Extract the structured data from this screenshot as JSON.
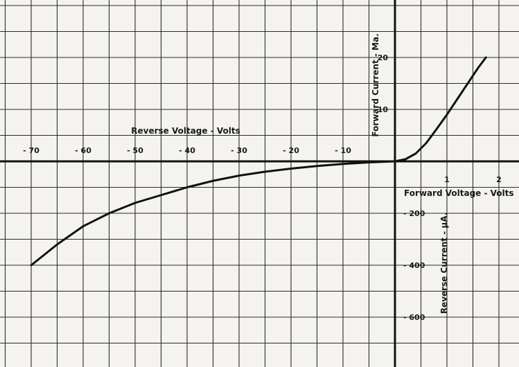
{
  "chart_data": {
    "type": "line",
    "grid": true,
    "axes": {
      "reverse_voltage": {
        "label": "Reverse Voltage - Volts",
        "ticks": [
          "- 70",
          "- 60",
          "- 50",
          "- 40",
          "- 30",
          "- 20",
          "- 10"
        ],
        "tick_values": [
          -70,
          -60,
          -50,
          -40,
          -30,
          -20,
          -10
        ],
        "range": [
          -75,
          0
        ]
      },
      "forward_voltage": {
        "label": "Forward Voltage - Volts",
        "ticks": [
          "1",
          "2"
        ],
        "tick_values": [
          1,
          2
        ],
        "range": [
          0,
          2.25
        ]
      },
      "forward_current": {
        "label": "Forward Current - Ma.",
        "ticks": [
          "20",
          "10"
        ],
        "tick_values": [
          20,
          10
        ],
        "range": [
          0,
          30
        ]
      },
      "reverse_current": {
        "label": "Reverse Current - µA.",
        "ticks": [
          "- 200",
          "- 400",
          "- 600"
        ],
        "tick_values": [
          -200,
          -400,
          -600
        ],
        "range": [
          -700,
          0
        ]
      }
    },
    "series": [
      {
        "segment": "reverse",
        "x": [
          -70,
          -65,
          -60,
          -55,
          -50,
          -45,
          -40,
          -35,
          -30,
          -25,
          -20,
          -15,
          -10,
          -5,
          0
        ],
        "y": [
          -400,
          -320,
          -250,
          -200,
          -160,
          -130,
          -100,
          -75,
          -55,
          -40,
          -28,
          -18,
          -10,
          -4,
          0
        ],
        "x_unit": "V",
        "y_unit": "µA"
      },
      {
        "segment": "forward",
        "x": [
          0,
          0.2,
          0.4,
          0.6,
          0.8,
          1.0,
          1.2,
          1.4,
          1.6,
          1.75
        ],
        "y": [
          0,
          0.4,
          1.5,
          3.5,
          6.2,
          9.0,
          12.0,
          15.0,
          18.0,
          20.0
        ],
        "x_unit": "V",
        "y_unit": "mA"
      }
    ]
  }
}
